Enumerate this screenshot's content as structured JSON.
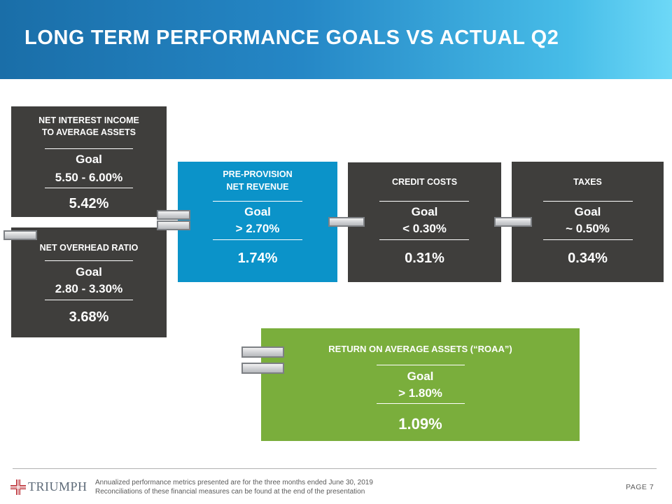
{
  "title": "LONG TERM PERFORMANCE GOALS VS ACTUAL Q2",
  "colors": {
    "dark": "#3f3e3c",
    "blue": "#0b93c9",
    "green": "#7aae3c",
    "header_start": "#1a6ea8",
    "header_end": "#6dd8f7",
    "logo_red": "#b8262d"
  },
  "metrics": {
    "nii": {
      "label_line1": "NET INTEREST INCOME",
      "label_line2": "TO AVERAGE ASSETS",
      "goal_label": "Goal",
      "goal_value": "5.50 - 6.00%",
      "actual": "5.42%"
    },
    "overhead": {
      "label": "NET OVERHEAD RATIO",
      "goal_label": "Goal",
      "goal_value": "2.80 - 3.30%",
      "actual": "3.68%"
    },
    "ppnr": {
      "label_line1": "PRE-PROVISION",
      "label_line2": "NET REVENUE",
      "goal_label": "Goal",
      "goal_value": "> 2.70%",
      "actual": "1.74%"
    },
    "credit": {
      "label": "CREDIT COSTS",
      "goal_label": "Goal",
      "goal_value": "< 0.30%",
      "actual": "0.31%"
    },
    "taxes": {
      "label": "TAXES",
      "goal_label": "Goal",
      "goal_value": "~ 0.50%",
      "actual": "0.34%"
    },
    "roaa": {
      "label": "RETURN ON AVERAGE ASSETS (“ROAA”)",
      "goal_label": "Goal",
      "goal_value": "> 1.80%",
      "actual": "1.09%"
    }
  },
  "footer": {
    "logo_text": "TRIUMPH",
    "note_line1": "Annualized performance metrics presented are for the three months ended June 30, 2019",
    "note_line2": "Reconciliations of these financial measures can be found at the end of the presentation",
    "page": "PAGE 7"
  }
}
